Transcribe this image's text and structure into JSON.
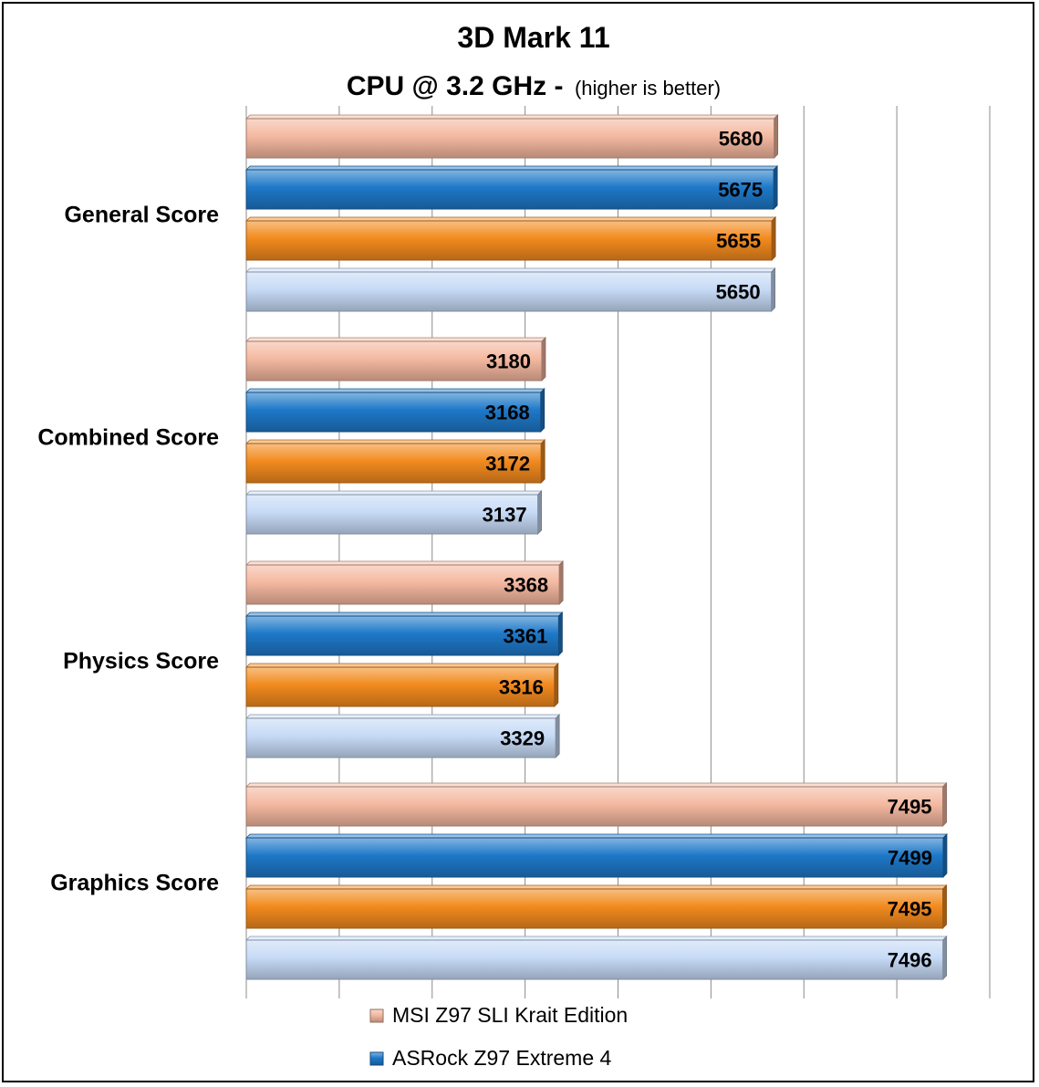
{
  "chart_data": {
    "type": "bar",
    "orientation": "horizontal",
    "title": "3D Mark 11",
    "subtitle_main": "CPU @ 3.2 GHz -",
    "subtitle_note": "(higher is better)",
    "xlabel": "",
    "ylabel": "",
    "xlim": [
      0,
      8000
    ],
    "grid": true,
    "legend_position": "bottom",
    "categories": [
      "General Score",
      "Combined Score",
      "Physics Score",
      "Graphics Score"
    ],
    "series": [
      {
        "name": "MSI Z97 SLI Krait Edition",
        "color": "#f4b8a0",
        "values": [
          5680,
          3180,
          3368,
          7495
        ]
      },
      {
        "name": "ASRock Z97 Extreme 4",
        "color": "#1e78c8",
        "values": [
          5675,
          3168,
          3361,
          7499
        ]
      },
      {
        "name": "",
        "color": "#f28a1e",
        "values": [
          5655,
          3172,
          3316,
          7495
        ]
      },
      {
        "name": "",
        "color": "#c6daf6",
        "values": [
          5650,
          3137,
          3329,
          7496
        ]
      }
    ]
  }
}
